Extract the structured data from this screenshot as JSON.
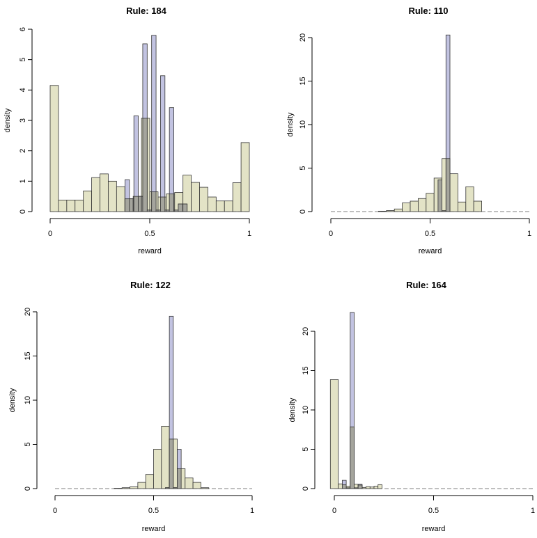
{
  "chart_data": [
    {
      "type": "bar",
      "title": "Rule: 184",
      "xlabel": "reward",
      "ylabel": "density",
      "xlim": [
        0,
        1
      ],
      "ylim": [
        0,
        6
      ],
      "xticks": [
        0,
        0.5,
        1
      ],
      "xtick_labels": [
        "0",
        "0.5",
        "1"
      ],
      "yticks": [
        0,
        1,
        2,
        3,
        4,
        5,
        6
      ],
      "ytick_labels": [
        "0",
        "1",
        "2",
        "3",
        "4",
        "5",
        "6"
      ],
      "colors": {
        "series_a": "#e3e3c6",
        "series_b": "#b7b9dc",
        "overlap": "#a5a59d",
        "stroke": "#333333"
      },
      "series": [
        {
          "bins": [
            [
              -0.0167,
              0.0167,
              4.15
            ],
            [
              0.0167,
              0.05,
              0.38
            ],
            [
              0.05,
              0.0833,
              0.38
            ],
            [
              0.0833,
              0.1167,
              0.38
            ],
            [
              0.1167,
              0.15,
              0.68
            ],
            [
              0.15,
              0.1833,
              1.12
            ],
            [
              0.1833,
              0.2167,
              1.24
            ],
            [
              0.2167,
              0.25,
              1.0
            ],
            [
              0.25,
              0.2833,
              0.82
            ],
            [
              0.2833,
              0.3167,
              0.42
            ],
            [
              0.3167,
              0.35,
              0.5
            ],
            [
              0.35,
              0.3833,
              3.07
            ],
            [
              0.3833,
              0.4167,
              0.65
            ],
            [
              0.4167,
              0.45,
              0.48
            ],
            [
              0.45,
              0.4833,
              0.58
            ],
            [
              0.4833,
              0.5167,
              0.63
            ],
            [
              0.5167,
              0.55,
              1.2
            ],
            [
              0.55,
              0.5833,
              0.96
            ],
            [
              0.5833,
              0.6167,
              0.8
            ],
            [
              0.6167,
              0.65,
              0.48
            ],
            [
              0.65,
              0.6833,
              0.35
            ],
            [
              0.6833,
              0.7167,
              0.35
            ],
            [
              0.7167,
              0.75,
              0.95
            ],
            [
              0.75,
              0.7833,
              2.27
            ]
          ],
          "x_map": [
            [
              -0.0167,
              0
            ],
            [
              0.7833,
              1
            ]
          ]
        },
        {
          "bins": [
            [
              0.3757,
              0.398,
              1.05
            ],
            [
              0.398,
              0.4203,
              0.42
            ],
            [
              0.4203,
              0.4426,
              3.15
            ],
            [
              0.4426,
              0.4648,
              0.5
            ],
            [
              0.4648,
              0.4871,
              5.52
            ],
            [
              0.4871,
              0.5094,
              0.05
            ],
            [
              0.5094,
              0.5317,
              5.8
            ],
            [
              0.5317,
              0.554,
              0.05
            ],
            [
              0.554,
              0.5763,
              4.47
            ],
            [
              0.5763,
              0.5985,
              0.05
            ],
            [
              0.5985,
              0.6208,
              3.42
            ],
            [
              0.6208,
              0.6431,
              0.05
            ],
            [
              0.6431,
              0.6654,
              0.25
            ],
            [
              0.6654,
              0.6877,
              0.25
            ]
          ]
        }
      ]
    },
    {
      "type": "bar",
      "title": "Rule: 110",
      "xlabel": "reward",
      "ylabel": "density",
      "xlim": [
        0,
        1
      ],
      "ylim": [
        0,
        20
      ],
      "xticks": [
        0,
        0.5,
        1
      ],
      "xtick_labels": [
        "0",
        "0.5",
        "1"
      ],
      "yticks": [
        0,
        5,
        10,
        15,
        20
      ],
      "ytick_labels": [
        "0",
        "5",
        "10",
        "15",
        "20"
      ],
      "series": [
        {
          "bins": [
            [
              0.24,
              0.28,
              0.05
            ],
            [
              0.28,
              0.32,
              0.12
            ],
            [
              0.32,
              0.36,
              0.3
            ],
            [
              0.36,
              0.4,
              1.0
            ],
            [
              0.4,
              0.44,
              1.2
            ],
            [
              0.44,
              0.48,
              1.5
            ],
            [
              0.48,
              0.52,
              2.1
            ],
            [
              0.52,
              0.56,
              3.85
            ],
            [
              0.56,
              0.6,
              6.1
            ],
            [
              0.6,
              0.64,
              4.35
            ],
            [
              0.64,
              0.68,
              1.1
            ],
            [
              0.68,
              0.72,
              2.85
            ],
            [
              0.72,
              0.76,
              1.2
            ]
          ]
        },
        {
          "bins": [
            [
              0.54,
              0.56,
              3.65
            ],
            [
              0.56,
              0.58,
              0.1
            ],
            [
              0.58,
              0.6,
              20.3
            ]
          ]
        }
      ]
    },
    {
      "type": "bar",
      "title": "Rule: 122",
      "xlabel": "reward",
      "ylabel": "density",
      "xlim": [
        0,
        1
      ],
      "ylim": [
        0,
        20
      ],
      "xticks": [
        0,
        0.5,
        1
      ],
      "xtick_labels": [
        "0",
        "0.5",
        "1"
      ],
      "yticks": [
        0,
        5,
        10,
        15,
        20
      ],
      "ytick_labels": [
        "0",
        "5",
        "10",
        "15",
        "20"
      ],
      "series": [
        {
          "bins": [
            [
              0.3,
              0.34,
              0.04
            ],
            [
              0.34,
              0.38,
              0.1
            ],
            [
              0.38,
              0.42,
              0.2
            ],
            [
              0.42,
              0.46,
              0.7
            ],
            [
              0.46,
              0.5,
              1.6
            ],
            [
              0.5,
              0.54,
              4.45
            ],
            [
              0.54,
              0.58,
              7.05
            ],
            [
              0.58,
              0.62,
              5.6
            ],
            [
              0.62,
              0.66,
              2.25
            ],
            [
              0.66,
              0.7,
              1.2
            ],
            [
              0.7,
              0.74,
              0.7
            ],
            [
              0.74,
              0.78,
              0.1
            ]
          ]
        },
        {
          "bins": [
            [
              0.56,
              0.58,
              0.1
            ],
            [
              0.58,
              0.6,
              19.5
            ],
            [
              0.6,
              0.62,
              0.1
            ],
            [
              0.62,
              0.64,
              4.45
            ]
          ]
        }
      ]
    },
    {
      "type": "bar",
      "title": "Rule: 164",
      "xlabel": "reward",
      "ylabel": "density",
      "xlim": [
        0,
        1
      ],
      "ylim": [
        0,
        20
      ],
      "xticks": [
        0,
        0.5,
        1
      ],
      "xtick_labels": [
        "0",
        "0.5",
        "1"
      ],
      "yticks": [
        0,
        5,
        10,
        15,
        20
      ],
      "ytick_labels": [
        "0",
        "5",
        "10",
        "15",
        "20"
      ],
      "series": [
        {
          "bins": [
            [
              -0.02,
              0.02,
              13.85
            ],
            [
              0.02,
              0.04,
              0.6
            ],
            [
              0.04,
              0.06,
              0.5
            ],
            [
              0.06,
              0.08,
              0.3
            ],
            [
              0.08,
              0.1,
              7.85
            ],
            [
              0.1,
              0.12,
              0.55
            ],
            [
              0.12,
              0.14,
              0.45
            ],
            [
              0.14,
              0.16,
              0.15
            ],
            [
              0.16,
              0.18,
              0.25
            ],
            [
              0.18,
              0.2,
              0.2
            ],
            [
              0.2,
              0.22,
              0.3
            ],
            [
              0.22,
              0.24,
              0.5
            ]
          ]
        },
        {
          "bins": [
            [
              0.04,
              0.06,
              1.05
            ],
            [
              0.06,
              0.08,
              0.1
            ],
            [
              0.08,
              0.1,
              22.4
            ],
            [
              0.1,
              0.12,
              0.1
            ],
            [
              0.12,
              0.14,
              0.55
            ]
          ]
        }
      ]
    }
  ]
}
